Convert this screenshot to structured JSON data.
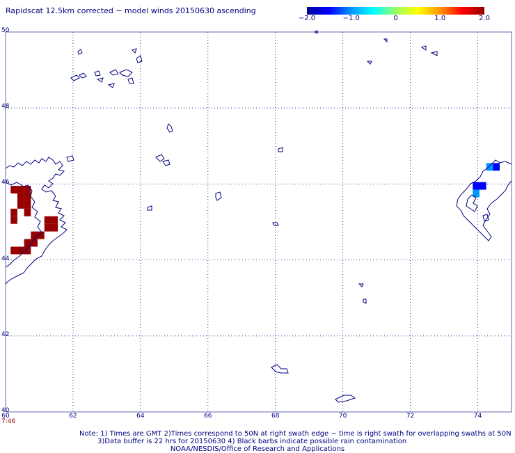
{
  "title": "Rapidscat 12.5km corrected − model winds 20150630 ascending",
  "colorbar": {
    "ticks": [
      "−2.0",
      "−1.0",
      "0",
      "1.0",
      "2.0"
    ],
    "values": [
      -2.0,
      -1.0,
      0,
      1.0,
      2.0
    ],
    "colors": [
      "#000096",
      "#0000ff",
      "#0096ff",
      "#00ffff",
      "#96ff64",
      "#ffff00",
      "#ff9600",
      "#ff0000",
      "#960000"
    ]
  },
  "map": {
    "lat_labels": [
      "50",
      "48",
      "46",
      "44",
      "42",
      "40"
    ],
    "lon_labels": [
      "60",
      "62",
      "64",
      "66",
      "68",
      "70",
      "72",
      "74"
    ],
    "lat_range": [
      40,
      50
    ],
    "lon_range": [
      60,
      75
    ],
    "time_label": "7:46",
    "coast_color": "#000080",
    "grid": "dotted"
  },
  "wind_cells": [
    {
      "lat": 45.85,
      "lon": 60.25,
      "value": 2.0
    },
    {
      "lat": 45.85,
      "lon": 60.45,
      "value": 2.0
    },
    {
      "lat": 45.85,
      "lon": 60.65,
      "value": 2.0
    },
    {
      "lat": 45.65,
      "lon": 60.45,
      "value": 2.0
    },
    {
      "lat": 45.65,
      "lon": 60.65,
      "value": 2.0
    },
    {
      "lat": 45.45,
      "lon": 60.45,
      "value": 2.0
    },
    {
      "lat": 45.45,
      "lon": 60.65,
      "value": 2.0
    },
    {
      "lat": 45.25,
      "lon": 60.25,
      "value": 2.0
    },
    {
      "lat": 45.25,
      "lon": 60.65,
      "value": 2.0
    },
    {
      "lat": 45.05,
      "lon": 60.25,
      "value": 2.0
    },
    {
      "lat": 45.05,
      "lon": 61.25,
      "value": 2.0
    },
    {
      "lat": 45.05,
      "lon": 61.45,
      "value": 2.0
    },
    {
      "lat": 44.85,
      "lon": 61.25,
      "value": 2.0
    },
    {
      "lat": 44.85,
      "lon": 61.45,
      "value": 2.0
    },
    {
      "lat": 44.65,
      "lon": 60.85,
      "value": 2.0
    },
    {
      "lat": 44.65,
      "lon": 61.05,
      "value": 2.0
    },
    {
      "lat": 44.45,
      "lon": 60.65,
      "value": 2.0
    },
    {
      "lat": 44.45,
      "lon": 60.85,
      "value": 2.0
    },
    {
      "lat": 44.25,
      "lon": 60.25,
      "value": 2.0
    },
    {
      "lat": 44.25,
      "lon": 60.45,
      "value": 2.0
    },
    {
      "lat": 44.25,
      "lon": 60.65,
      "value": 2.0
    },
    {
      "lat": 46.45,
      "lon": 74.35,
      "value": -0.9
    },
    {
      "lat": 46.45,
      "lon": 74.55,
      "value": -1.5
    },
    {
      "lat": 45.95,
      "lon": 73.95,
      "value": -1.3
    },
    {
      "lat": 45.95,
      "lon": 74.15,
      "value": -1.6
    },
    {
      "lat": 45.75,
      "lon": 73.95,
      "value": -1.1
    }
  ],
  "notes": {
    "line1": "Note: 1) Times are GMT 2)Times correspond to 50N at right swath edge − time is right swath for overlapping swaths at 50N",
    "line2": "3)Data buffer is 22 hrs for 20150630 4) Black barbs indicate possible rain contamination",
    "line3": "NOAA/NESDIS/Office of Research and Applications"
  }
}
